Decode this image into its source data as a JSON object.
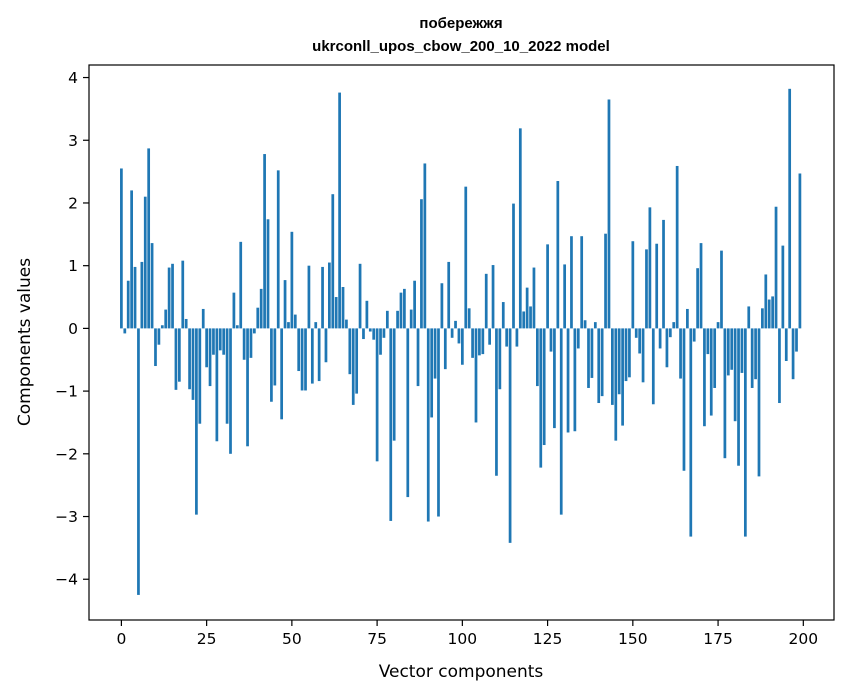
{
  "chart_data": {
    "type": "bar",
    "title": "побережжя",
    "subtitle": "ukrconll_upos_cbow_200_10_2022 model",
    "xlabel": "Vector components",
    "ylabel": "Components values",
    "xlim": [
      -9.5,
      209
    ],
    "ylim": [
      -4.65,
      4.2
    ],
    "xticks": [
      0,
      25,
      50,
      75,
      100,
      125,
      150,
      175,
      200
    ],
    "yticks": [
      -4,
      -3,
      -2,
      -1,
      0,
      1,
      2,
      3,
      4
    ],
    "xtick_labels": [
      "0",
      "25",
      "50",
      "75",
      "100",
      "125",
      "150",
      "175",
      "200"
    ],
    "ytick_labels": [
      "−4",
      "−3",
      "−2",
      "−1",
      "0",
      "1",
      "2",
      "3",
      "4"
    ],
    "grid": false,
    "bar_color": "#1f77b4",
    "x": [
      0,
      1,
      2,
      3,
      4,
      5,
      6,
      7,
      8,
      9,
      10,
      11,
      12,
      13,
      14,
      15,
      16,
      17,
      18,
      19,
      20,
      21,
      22,
      23,
      24,
      25,
      26,
      27,
      28,
      29,
      30,
      31,
      32,
      33,
      34,
      35,
      36,
      37,
      38,
      39,
      40,
      41,
      42,
      43,
      44,
      45,
      46,
      47,
      48,
      49,
      50,
      51,
      52,
      53,
      54,
      55,
      56,
      57,
      58,
      59,
      60,
      61,
      62,
      63,
      64,
      65,
      66,
      67,
      68,
      69,
      70,
      71,
      72,
      73,
      74,
      75,
      76,
      77,
      78,
      79,
      80,
      81,
      82,
      83,
      84,
      85,
      86,
      87,
      88,
      89,
      90,
      91,
      92,
      93,
      94,
      95,
      96,
      97,
      98,
      99,
      100,
      101,
      102,
      103,
      104,
      105,
      106,
      107,
      108,
      109,
      110,
      111,
      112,
      113,
      114,
      115,
      116,
      117,
      118,
      119,
      120,
      121,
      122,
      123,
      124,
      125,
      126,
      127,
      128,
      129,
      130,
      131,
      132,
      133,
      134,
      135,
      136,
      137,
      138,
      139,
      140,
      141,
      142,
      143,
      144,
      145,
      146,
      147,
      148,
      149,
      150,
      151,
      152,
      153,
      154,
      155,
      156,
      157,
      158,
      159,
      160,
      161,
      162,
      163,
      164,
      165,
      166,
      167,
      168,
      169,
      170,
      171,
      172,
      173,
      174,
      175,
      176,
      177,
      178,
      179,
      180,
      181,
      182,
      183,
      184,
      185,
      186,
      187,
      188,
      189,
      190,
      191,
      192,
      193,
      194,
      195,
      196,
      197,
      198,
      199
    ],
    "values": [
      2.55,
      -0.08,
      0.76,
      2.2,
      0.98,
      -4.25,
      1.06,
      2.1,
      2.87,
      1.36,
      -0.6,
      -0.26,
      0.05,
      0.3,
      0.97,
      1.03,
      -0.98,
      -0.85,
      1.08,
      0.15,
      -0.97,
      -1.14,
      -2.97,
      -1.52,
      0.31,
      -0.62,
      -0.92,
      -0.42,
      -1.8,
      -0.35,
      -0.42,
      -1.52,
      -2.0,
      0.57,
      0.05,
      1.38,
      -0.5,
      -1.88,
      -0.47,
      -0.08,
      0.33,
      0.63,
      2.78,
      1.74,
      -1.17,
      -0.91,
      2.52,
      -1.45,
      0.77,
      0.1,
      1.54,
      0.22,
      -0.68,
      -0.99,
      -0.99,
      1.0,
      -0.88,
      0.1,
      -0.84,
      0.98,
      -0.54,
      1.05,
      2.14,
      0.5,
      3.76,
      0.66,
      0.14,
      -0.73,
      -1.22,
      -1.04,
      1.03,
      -0.17,
      0.44,
      -0.05,
      -0.18,
      -2.12,
      -0.42,
      -0.15,
      0.28,
      -3.07,
      -1.79,
      0.28,
      0.57,
      0.63,
      -2.69,
      0.3,
      0.76,
      -0.92,
      2.06,
      2.63,
      -3.08,
      -1.42,
      -0.8,
      -3.0,
      0.72,
      -0.65,
      1.06,
      -0.15,
      0.12,
      -0.24,
      -0.58,
      2.26,
      0.32,
      -0.47,
      -1.5,
      -0.43,
      -0.41,
      0.87,
      -0.26,
      1.01,
      -2.35,
      -0.97,
      0.42,
      -0.29,
      -3.42,
      1.99,
      -0.29,
      3.19,
      0.27,
      0.65,
      0.35,
      0.97,
      -0.92,
      -2.22,
      -1.86,
      1.34,
      -0.37,
      -1.59,
      2.35,
      -2.97,
      1.02,
      -1.66,
      1.47,
      -1.64,
      -0.32,
      1.47,
      0.13,
      -0.95,
      -0.79,
      0.1,
      -1.19,
      -1.08,
      1.51,
      3.65,
      -1.22,
      -1.79,
      -1.05,
      -1.55,
      -0.84,
      -0.78,
      1.39,
      -0.15,
      -0.4,
      -0.86,
      1.26,
      1.93,
      -1.21,
      1.35,
      -0.32,
      1.73,
      -0.62,
      -0.14,
      0.1,
      2.59,
      -0.8,
      -2.27,
      0.31,
      -3.32,
      -0.21,
      0.96,
      1.36,
      -1.56,
      -0.41,
      -1.39,
      -0.95,
      0.1,
      1.24,
      -2.07,
      -0.75,
      -0.66,
      -1.48,
      -2.19,
      -0.71,
      -3.32,
      0.35,
      -0.95,
      -0.81,
      -2.36,
      0.32,
      0.86,
      0.46,
      0.51,
      1.94,
      -1.19,
      1.32,
      -0.52,
      3.82,
      -0.81,
      -0.37,
      2.47
    ]
  }
}
